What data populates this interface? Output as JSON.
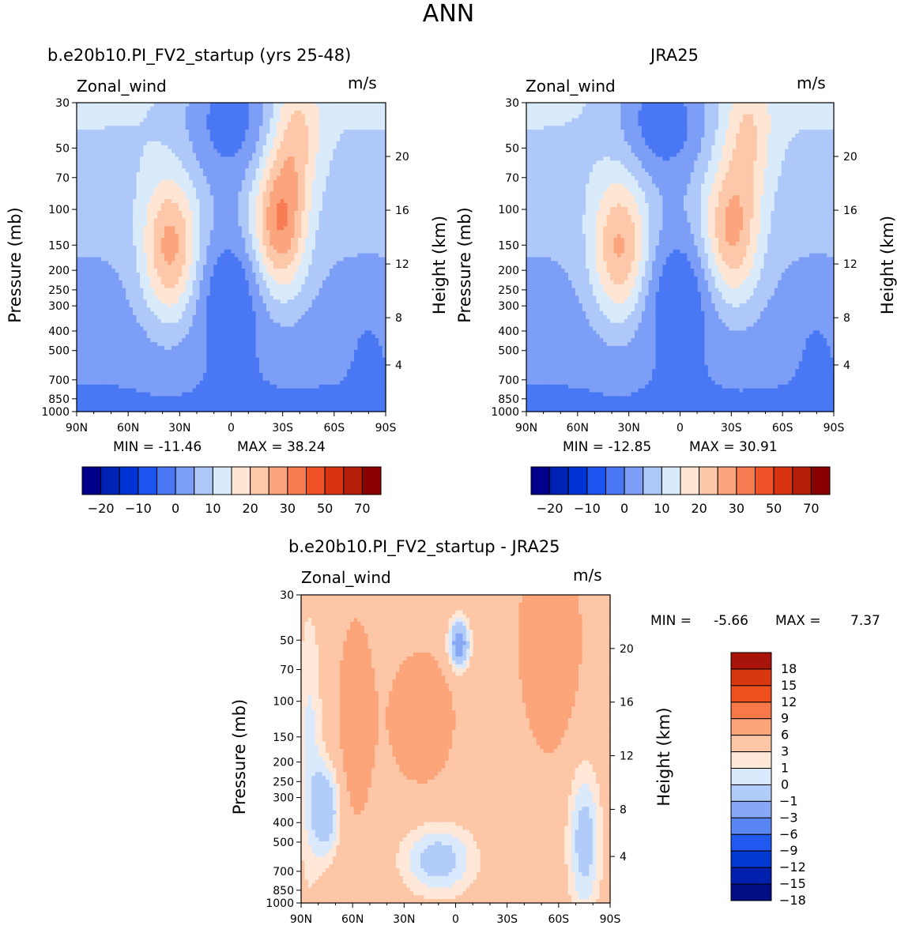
{
  "figure_title": "ANN",
  "y_ticks": [
    "30",
    "50",
    "70",
    "100",
    "150",
    "200",
    "250",
    "300",
    "400",
    "500",
    "700",
    "850",
    "1000"
  ],
  "x_ticks": [
    "90N",
    "60N",
    "30N",
    "0",
    "30S",
    "60S",
    "90S"
  ],
  "height_ticks": [
    "20",
    "16",
    "12",
    "8",
    "4"
  ],
  "ylabel": "Pressure (mb)",
  "ylabel_right": "Height (km)",
  "colors": {
    "abs_palette": [
      "#00008a",
      "#0022b4",
      "#0033d6",
      "#1c54f0",
      "#4a78f4",
      "#7c9ef6",
      "#aec8f9",
      "#d9eafb",
      "#ffe6d4",
      "#fdc8aa",
      "#fca47d",
      "#f87c52",
      "#f05228",
      "#d83414",
      "#b51e0a",
      "#8a0000"
    ],
    "diff_palette": [
      "#000e82",
      "#0020ae",
      "#0038d2",
      "#2058f0",
      "#5a86f4",
      "#86a8f6",
      "#b2ccfa",
      "#dae9fc",
      "#ffe8d8",
      "#fdc6a6",
      "#fca47a",
      "#f97848",
      "#ef4f1e",
      "#d9380e",
      "#a8140a"
    ]
  },
  "chart_data": [
    {
      "type": "heatmap",
      "title": "b.e20b10.PI_FV2_startup (yrs 25-48)",
      "field": "Zonal_wind",
      "units": "m/s",
      "xlabel": "",
      "ylabel": "Pressure (mb)",
      "ylabel_right": "Height (km)",
      "x_range": [
        "90N",
        "90S"
      ],
      "y_range": [
        1000,
        30
      ],
      "min_label": "MIN =  -11.46",
      "max_label": "MAX =   38.24",
      "min": -11.46,
      "max": 38.24,
      "colorbar_labels": [
        "-20",
        "-10",
        "0",
        "10",
        "20",
        "30",
        "50",
        "70"
      ]
    },
    {
      "type": "heatmap",
      "title": "JRA25",
      "field": "Zonal_wind",
      "units": "m/s",
      "xlabel": "",
      "ylabel": "Pressure (mb)",
      "ylabel_right": "Height (km)",
      "x_range": [
        "90N",
        "90S"
      ],
      "y_range": [
        1000,
        30
      ],
      "min_label": "MIN =  -12.85",
      "max_label": "MAX =   30.91",
      "min": -12.85,
      "max": 30.91,
      "colorbar_labels": [
        "-20",
        "-10",
        "0",
        "10",
        "20",
        "30",
        "50",
        "70"
      ]
    },
    {
      "type": "heatmap",
      "title": "b.e20b10.PI_FV2_startup - JRA25",
      "field": "Zonal_wind",
      "units": "m/s",
      "xlabel": "",
      "ylabel": "Pressure (mb)",
      "ylabel_right": "Height (km)",
      "x_range": [
        "90N",
        "90S"
      ],
      "y_range": [
        1000,
        30
      ],
      "min_label": "MIN =",
      "min_value": "-5.66",
      "max_label": "MAX =",
      "max_value": "7.37",
      "min": -5.66,
      "max": 7.37,
      "colorbar_labels": [
        "18",
        "15",
        "12",
        "9",
        "6",
        "3",
        "1",
        "0",
        "-1",
        "-3",
        "-6",
        "-9",
        "-12",
        "-15",
        "-18"
      ]
    }
  ]
}
